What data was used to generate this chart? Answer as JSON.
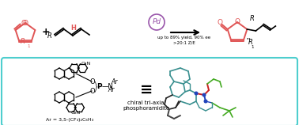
{
  "bg_color": "#ffffff",
  "black": "#000000",
  "red": "#e05555",
  "teal": "#4ecece",
  "pd_color": "#9955aa",
  "reaction_text1": "up to 89% yield, 90% ee",
  "reaction_text2": ">20:1 Z/E",
  "chiral_label1": "chiral tri-axial",
  "chiral_label2": "phosphoramidite",
  "ar_label": "Ar = 3,5-(CF₃)₂C₆H₃",
  "figsize": [
    3.78,
    1.58
  ],
  "dpi": 100
}
